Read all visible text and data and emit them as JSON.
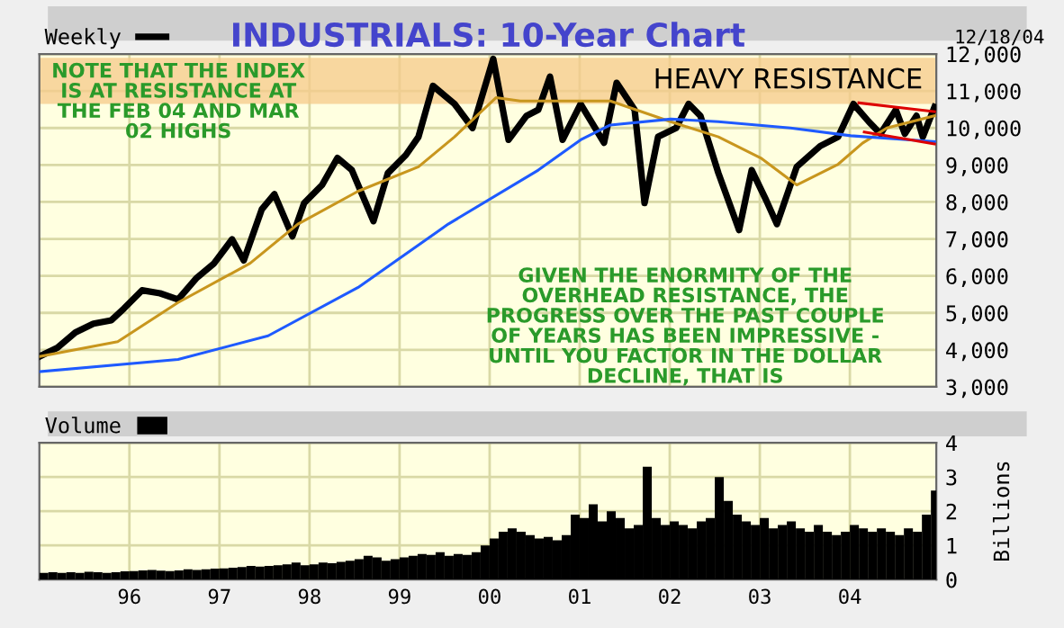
{
  "chart_data": [
    {
      "type": "line",
      "title": "INDUSTRIALS: 10-Year Chart",
      "annotations": [
        "12/18/04",
        "NOTE THAT THE INDEX IS AT RESISTANCE AT THE FEB 04 AND MAR 02 HIGHS",
        "GIVEN THE ENORMITY OF THE OVERHEAD RESISTANCE, THE PROGRESS OVER THE PAST COUPLE OF YEARS HAS BEEN IMPRESSIVE - UNTIL YOU FACTOR IN THE DOLLAR DECLINE, THAT IS"
      ],
      "series": [
        {
          "name": "Weekly",
          "color": "#000000",
          "x": [
            1995.0,
            1995.2,
            1995.4,
            1995.6,
            1995.8,
            1995.94,
            1996.14,
            1996.34,
            1996.54,
            1996.74,
            1996.94,
            1997.14,
            1997.27,
            1997.47,
            1997.61,
            1997.81,
            1997.94,
            1998.14,
            1998.31,
            1998.47,
            1998.71,
            1998.87,
            1999.07,
            1999.21,
            1999.37,
            1999.61,
            1999.81,
            2000.04,
            2000.21,
            2000.41,
            2000.54,
            2000.67,
            2000.81,
            2001.01,
            2001.27,
            2001.41,
            2001.61,
            2001.72,
            2001.87,
            2002.07,
            2002.21,
            2002.34,
            2002.54,
            2002.77,
            2002.91,
            2003.07,
            2003.19,
            2003.41,
            2003.67,
            2003.87,
            2004.04,
            2004.21,
            2004.34,
            2004.51,
            2004.61,
            2004.74,
            2004.81,
            2004.94
          ],
          "values": [
            3820,
            4060,
            4470,
            4710,
            4800,
            5120,
            5610,
            5530,
            5360,
            5930,
            6340,
            6990,
            6420,
            7800,
            8210,
            7070,
            7970,
            8460,
            9190,
            8860,
            7480,
            8780,
            9270,
            9760,
            11140,
            10650,
            10000,
            11870,
            9680,
            10330,
            10490,
            11390,
            9680,
            10650,
            9600,
            11220,
            10490,
            7970,
            9760,
            10000,
            10650,
            10330,
            8780,
            7240,
            8860,
            8050,
            7400,
            8950,
            9510,
            9760,
            10650,
            10170,
            9840,
            10490,
            9840,
            10330,
            9760,
            10570
          ]
        },
        {
          "color": "#c8961e",
          "x": [
            1995.0,
            1995.87,
            1996.54,
            1997.34,
            1997.87,
            1998.54,
            1999.21,
            1999.61,
            2000.07,
            2000.34,
            2001.34,
            2002.01,
            2002.54,
            2003.01,
            2003.41,
            2003.87,
            2004.14,
            2004.41,
            2004.94
          ],
          "values": [
            3820,
            4220,
            5280,
            6340,
            7400,
            8290,
            8950,
            9760,
            10820,
            10730,
            10730,
            10170,
            9760,
            9190,
            8460,
            9020,
            9590,
            10000,
            10330
          ]
        },
        {
          "color": "#1e5aff",
          "x": [
            1995.0,
            1996.54,
            1997.54,
            1998.54,
            1999.54,
            2000.54,
            2001.01,
            2001.34,
            2002.01,
            2002.54,
            2003.34,
            2004.01,
            2004.94
          ],
          "values": [
            3410,
            3740,
            4380,
            5690,
            7400,
            8860,
            9680,
            10080,
            10240,
            10170,
            10000,
            9790,
            9630
          ]
        },
        {
          "color": "#dd0000",
          "x": [
            2004.1,
            2004.94
          ],
          "values": [
            10680,
            10440
          ]
        },
        {
          "color": "#dd0000",
          "x": [
            2004.16,
            2004.94
          ],
          "values": [
            9890,
            9570
          ]
        }
      ],
      "bands": [
        {
          "axis": "y",
          "from": 10650,
          "to": 11900,
          "label": "HEAVY RESISTANCE",
          "color": "#f5c98a"
        }
      ],
      "xlim": [
        1995.0,
        2004.96
      ],
      "xticks": [
        {
          "value": 1996,
          "label": null
        },
        {
          "value": 1997,
          "label": null
        },
        {
          "value": 1998,
          "label": null
        },
        {
          "value": 1999,
          "label": null
        },
        {
          "value": 2000,
          "label": null
        },
        {
          "value": 2001,
          "label": null
        },
        {
          "value": 2002,
          "label": null
        },
        {
          "value": 2003,
          "label": null
        },
        {
          "value": 2004,
          "label": null
        }
      ],
      "ylim": [
        3000,
        12000
      ],
      "yticks": [
        {
          "value": 3000,
          "label": "3,000"
        },
        {
          "value": 4000,
          "label": "4,000"
        },
        {
          "value": 5000,
          "label": "5,000"
        },
        {
          "value": 6000,
          "label": "6,000"
        },
        {
          "value": 7000,
          "label": "7,000"
        },
        {
          "value": 8000,
          "label": "8,000"
        },
        {
          "value": 9000,
          "label": "9,000"
        },
        {
          "value": 10000,
          "label": "10,000"
        },
        {
          "value": 11000,
          "label": "11,000"
        },
        {
          "value": 12000,
          "label": "12,000"
        }
      ],
      "tick_labels": "y",
      "grid": true,
      "legend": "top left"
    },
    {
      "type": "bar",
      "ylabel": "Billions",
      "series": [
        {
          "name": "Volume",
          "color": "#000000",
          "x": [
            1995.0,
            1995.1,
            1995.2,
            1995.3,
            1995.4,
            1995.5,
            1995.6,
            1995.7,
            1995.8,
            1995.9,
            1996.0,
            1996.1,
            1996.2,
            1996.3,
            1996.4,
            1996.5,
            1996.6,
            1996.7,
            1996.8,
            1996.9,
            1997.0,
            1997.1,
            1997.2,
            1997.3,
            1997.4,
            1997.5,
            1997.6,
            1997.7,
            1997.8,
            1997.9,
            1998.0,
            1998.1,
            1998.2,
            1998.3,
            1998.4,
            1998.5,
            1998.6,
            1998.7,
            1998.8,
            1998.9,
            1999.0,
            1999.1,
            1999.2,
            1999.3,
            1999.4,
            1999.5,
            1999.6,
            1999.7,
            1999.8,
            1999.9,
            2000.0,
            2000.1,
            2000.2,
            2000.3,
            2000.4,
            2000.5,
            2000.6,
            2000.7,
            2000.8,
            2000.9,
            2001.0,
            2001.1,
            2001.2,
            2001.3,
            2001.4,
            2001.5,
            2001.6,
            2001.7,
            2001.8,
            2001.9,
            2002.0,
            2002.1,
            2002.2,
            2002.3,
            2002.4,
            2002.5,
            2002.6,
            2002.7,
            2002.8,
            2002.9,
            2003.0,
            2003.1,
            2003.2,
            2003.3,
            2003.4,
            2003.5,
            2003.6,
            2003.7,
            2003.8,
            2003.9,
            2004.0,
            2004.1,
            2004.2,
            2004.3,
            2004.4,
            2004.5,
            2004.6,
            2004.7,
            2004.8,
            2004.9
          ],
          "values": [
            0.2,
            0.22,
            0.2,
            0.22,
            0.2,
            0.23,
            0.22,
            0.2,
            0.22,
            0.24,
            0.25,
            0.27,
            0.28,
            0.26,
            0.25,
            0.27,
            0.3,
            0.28,
            0.3,
            0.32,
            0.33,
            0.35,
            0.37,
            0.4,
            0.38,
            0.4,
            0.42,
            0.45,
            0.5,
            0.42,
            0.45,
            0.5,
            0.48,
            0.52,
            0.55,
            0.6,
            0.7,
            0.65,
            0.55,
            0.6,
            0.65,
            0.7,
            0.75,
            0.72,
            0.8,
            0.7,
            0.75,
            0.72,
            0.8,
            1.0,
            1.2,
            1.4,
            1.5,
            1.4,
            1.3,
            1.2,
            1.25,
            1.15,
            1.3,
            1.9,
            1.8,
            2.2,
            1.7,
            2.0,
            1.8,
            1.5,
            1.6,
            3.3,
            1.8,
            1.6,
            1.7,
            1.6,
            1.5,
            1.7,
            1.8,
            3.0,
            2.3,
            1.9,
            1.7,
            1.6,
            1.8,
            1.5,
            1.6,
            1.7,
            1.5,
            1.4,
            1.6,
            1.4,
            1.3,
            1.4,
            1.6,
            1.5,
            1.4,
            1.5,
            1.4,
            1.3,
            1.5,
            1.4,
            1.9,
            2.6
          ]
        }
      ],
      "xlim": [
        1995.0,
        2004.96
      ],
      "xticks": [
        {
          "value": 1996,
          "label": "96"
        },
        {
          "value": 1997,
          "label": "97"
        },
        {
          "value": 1998,
          "label": "98"
        },
        {
          "value": 1999,
          "label": "99"
        },
        {
          "value": 2000,
          "label": "00"
        },
        {
          "value": 2001,
          "label": "01"
        },
        {
          "value": 2002,
          "label": "02"
        },
        {
          "value": 2003,
          "label": "03"
        },
        {
          "value": 2004,
          "label": "04"
        }
      ],
      "ylim": [
        0,
        4
      ],
      "yticks": [
        0,
        1,
        2,
        3,
        4
      ],
      "grid": true,
      "legend": "top left"
    }
  ]
}
